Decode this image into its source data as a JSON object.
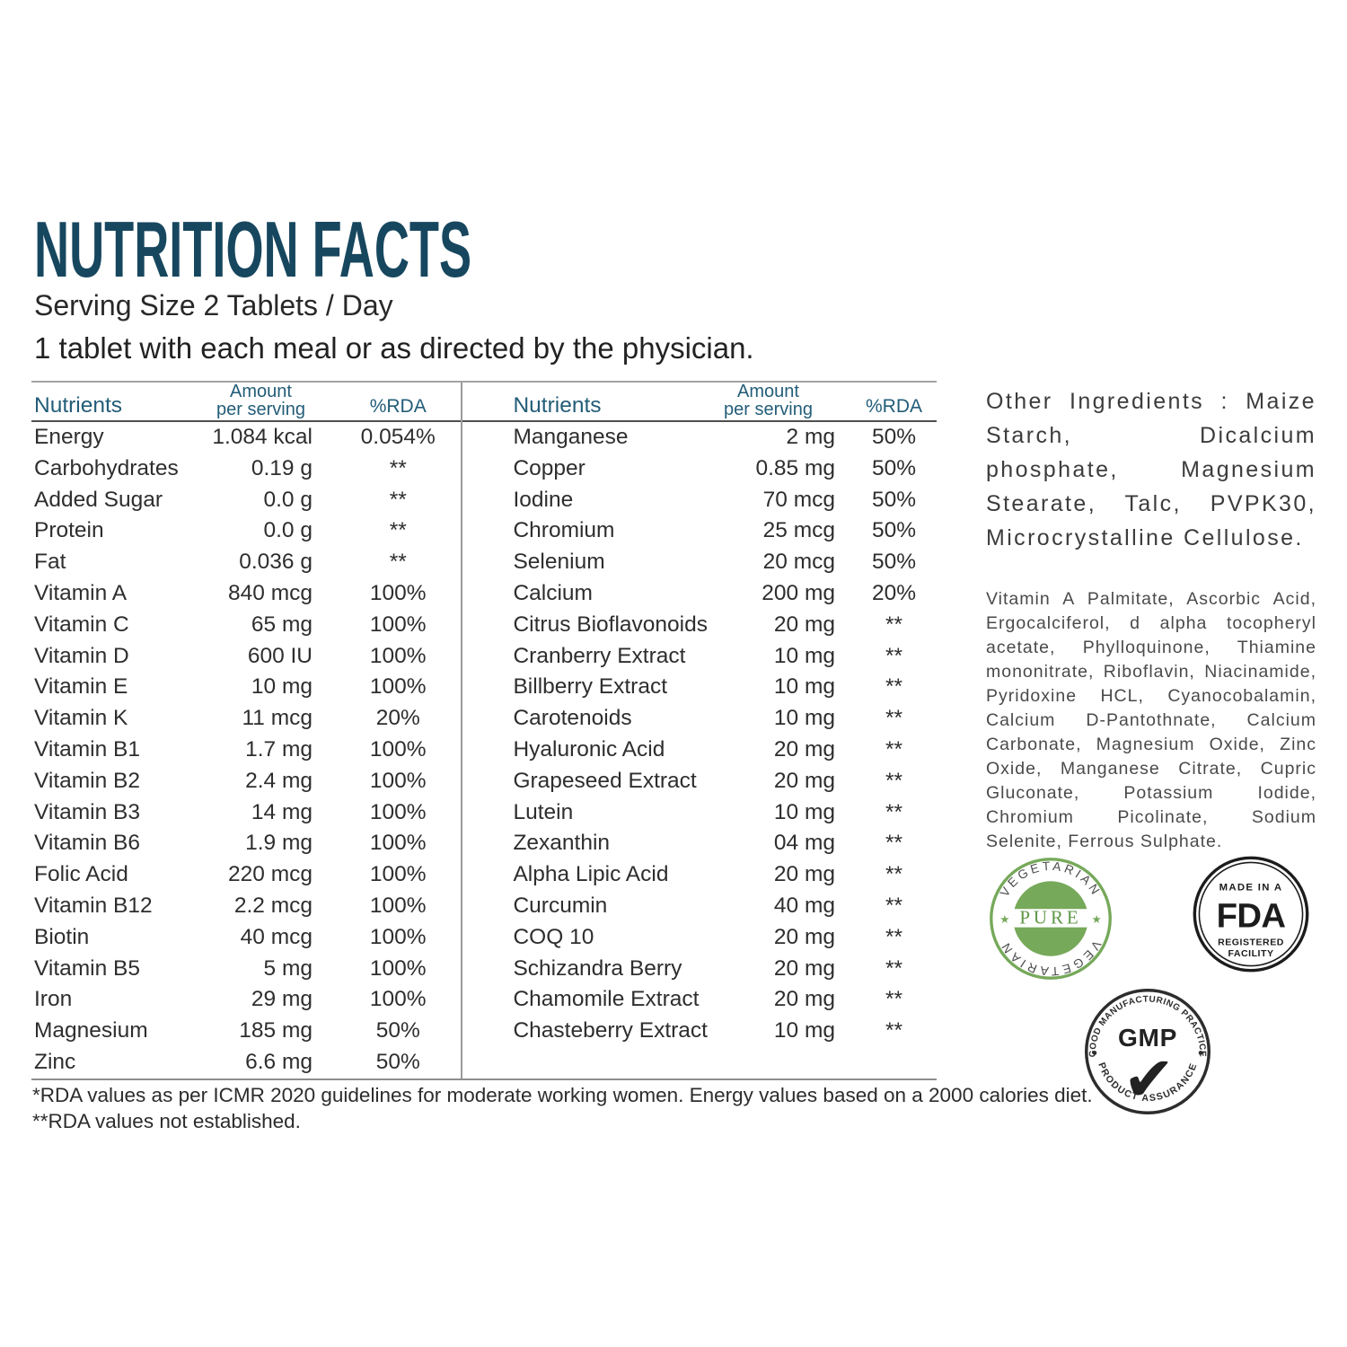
{
  "title": "NUTRITION FACTS",
  "serving_size": "Serving Size 2 Tablets / Day",
  "directions": "1 tablet with each meal or as directed by the physician.",
  "table_headers": {
    "nutrient": "Nutrients",
    "amount_line1": "Amount",
    "amount_line2": "per serving",
    "rda": "%RDA"
  },
  "left_table": [
    {
      "name": "Energy",
      "amount": "1.084 kcal",
      "rda": "0.054%"
    },
    {
      "name": "Carbohydrates",
      "amount": "0.19 g",
      "rda": "**"
    },
    {
      "name": "Added Sugar",
      "amount": "0.0 g",
      "rda": "**"
    },
    {
      "name": "Protein",
      "amount": "0.0 g",
      "rda": "**"
    },
    {
      "name": "Fat",
      "amount": "0.036 g",
      "rda": "**"
    },
    {
      "name": "Vitamin A",
      "amount": "840 mcg",
      "rda": "100%"
    },
    {
      "name": "Vitamin C",
      "amount": "65 mg",
      "rda": "100%"
    },
    {
      "name": "Vitamin D",
      "amount": "600 IU",
      "rda": "100%"
    },
    {
      "name": "Vitamin E",
      "amount": "10 mg",
      "rda": "100%"
    },
    {
      "name": "Vitamin K",
      "amount": "11 mcg",
      "rda": "20%"
    },
    {
      "name": "Vitamin B1",
      "amount": "1.7 mg",
      "rda": "100%"
    },
    {
      "name": "Vitamin B2",
      "amount": "2.4 mg",
      "rda": "100%"
    },
    {
      "name": "Vitamin B3",
      "amount": "14 mg",
      "rda": "100%"
    },
    {
      "name": "Vitamin B6",
      "amount": "1.9 mg",
      "rda": "100%"
    },
    {
      "name": "Folic Acid",
      "amount": "220 mcg",
      "rda": "100%"
    },
    {
      "name": "Vitamin B12",
      "amount": "2.2 mcg",
      "rda": "100%"
    },
    {
      "name": "Biotin",
      "amount": "40 mcg",
      "rda": "100%"
    },
    {
      "name": "Vitamin B5",
      "amount": "5 mg",
      "rda": "100%"
    },
    {
      "name": "Iron",
      "amount": "29 mg",
      "rda": "100%"
    },
    {
      "name": "Magnesium",
      "amount": "185 mg",
      "rda": "50%"
    },
    {
      "name": "Zinc",
      "amount": "6.6 mg",
      "rda": "50%"
    }
  ],
  "right_table": [
    {
      "name": "Manganese",
      "amount": "2 mg",
      "rda": "50%"
    },
    {
      "name": "Copper",
      "amount": "0.85 mg",
      "rda": "50%"
    },
    {
      "name": "Iodine",
      "amount": "70 mcg",
      "rda": "50%"
    },
    {
      "name": "Chromium",
      "amount": "25 mcg",
      "rda": "50%"
    },
    {
      "name": "Selenium",
      "amount": "20 mcg",
      "rda": "50%"
    },
    {
      "name": "Calcium",
      "amount": "200 mg",
      "rda": "20%"
    },
    {
      "name": "Citrus Bioflavonoids",
      "amount": "20 mg",
      "rda": "**"
    },
    {
      "name": "Cranberry Extract",
      "amount": "10 mg",
      "rda": "**"
    },
    {
      "name": "Billberry Extract",
      "amount": "10 mg",
      "rda": "**"
    },
    {
      "name": "Carotenoids",
      "amount": "10 mg",
      "rda": "**"
    },
    {
      "name": "Hyaluronic Acid",
      "amount": "20 mg",
      "rda": "**"
    },
    {
      "name": "Grapeseed Extract",
      "amount": "20 mg",
      "rda": "**"
    },
    {
      "name": "Lutein",
      "amount": "10 mg",
      "rda": "**"
    },
    {
      "name": "Zexanthin",
      "amount": "04 mg",
      "rda": "**"
    },
    {
      "name": "Alpha Lipic Acid",
      "amount": "20 mg",
      "rda": "**"
    },
    {
      "name": "Curcumin",
      "amount": "40 mg",
      "rda": "**"
    },
    {
      "name": "COQ 10",
      "amount": "20 mg",
      "rda": "**"
    },
    {
      "name": "Schizandra Berry",
      "amount": "20 mg",
      "rda": "**"
    },
    {
      "name": "Chamomile Extract",
      "amount": "20 mg",
      "rda": "**"
    },
    {
      "name": "Chasteberry Extract",
      "amount": "10 mg",
      "rda": "**"
    }
  ],
  "footnotes": [
    "*RDA values as per ICMR 2020 guidelines for moderate working women. Energy values based on a 2000 calories diet.",
    "**RDA values not established."
  ],
  "other_ingredients": "Other Ingredients : Maize Starch, Dicalcium phosphate, Magnesium Stearate, Talc, PVPK30, Microcrystalline Cellulose.",
  "active_ingredients": "Vitamin A Palmitate, Ascorbic Acid, Ergocalciferol, d alpha tocopheryl acetate, Phylloquinone, Thiamine mononitrate, Riboflavin, Niacinamide, Pyridoxine HCL, Cyanocobalamin, Calcium D-Pantothnate, Calcium Carbonate, Magnesium Oxide, Zinc Oxide, Manganese Citrate, Cupric Gluconate, Potassium Iodide, Chromium Picolinate, Sodium Selenite, Ferrous Sulphate.",
  "badges": {
    "vegetarian": {
      "arc_top": "VEGETARIAN",
      "arc_bottom": "VEGETARIAN",
      "center": "PURE",
      "star": "★"
    },
    "fda": {
      "top": "MADE IN A",
      "logo": "FDA",
      "bottom_line1": "REGISTERED",
      "bottom_line2": "FACILITY"
    },
    "gmp": {
      "arc_top": "GOOD MANUFACTURING PRACTICE",
      "arc_bottom": "PRODUCT ASSURANCE",
      "center": "GMP",
      "check": "✔"
    }
  },
  "colors": {
    "title_blue": "#17475f",
    "header_teal": "#235d78",
    "badge_green": "#76a95a",
    "text_dark": "#2e2e2e"
  }
}
